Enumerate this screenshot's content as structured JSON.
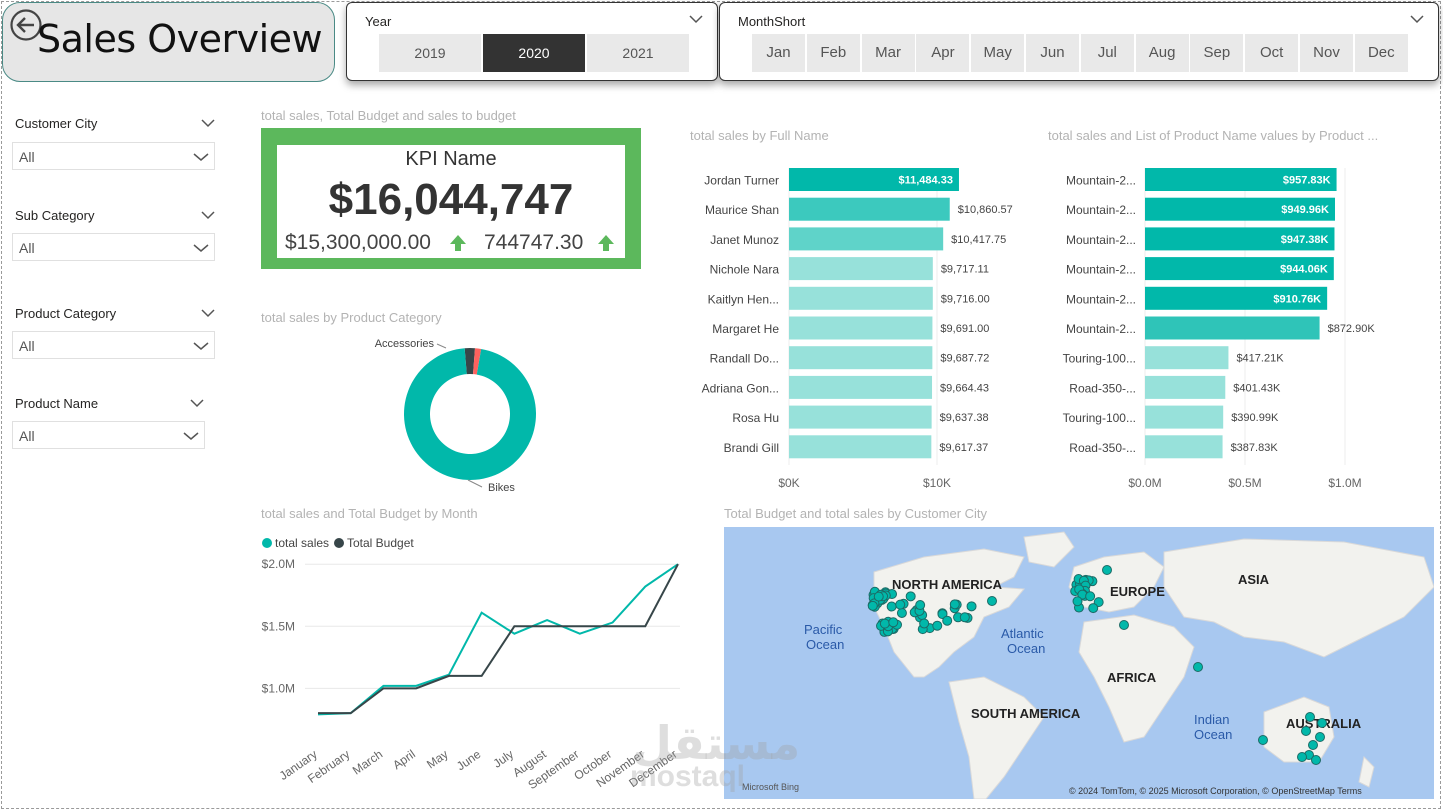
{
  "header": {
    "title": "Sales Overview"
  },
  "year_slicer": {
    "title": "Year",
    "options": [
      "2019",
      "2020",
      "2021"
    ],
    "selected": "2020"
  },
  "month_slicer": {
    "title": "MonthShort",
    "options": [
      "Jan",
      "Feb",
      "Mar",
      "Apr",
      "May",
      "Jun",
      "Jul",
      "Aug",
      "Sep",
      "Oct",
      "Nov",
      "Dec"
    ]
  },
  "filters": [
    {
      "label": "Customer City",
      "value": "All"
    },
    {
      "label": "Sub Category",
      "value": "All"
    },
    {
      "label": "Product Category",
      "value": "All"
    },
    {
      "label": "Product Name",
      "value": "All"
    }
  ],
  "kpi": {
    "section_title": "total sales, Total Budget and sales to budget",
    "name": "KPI Name",
    "value": "$16,044,747",
    "goal": "$15,300,000.00",
    "variance": "744747.30",
    "status_color": "#5cb85c"
  },
  "chart_data": [
    {
      "type": "bar",
      "orientation": "horizontal",
      "title": "total sales by Full Name",
      "categories": [
        "Jordan Turner",
        "Maurice Shan",
        "Janet Munoz",
        "Nichole Nara",
        "Kaitlyn Hen...",
        "Margaret He",
        "Randall Do...",
        "Adriana Gon...",
        "Rosa Hu",
        "Brandi Gill"
      ],
      "values": [
        11484.33,
        10860.57,
        10417.75,
        9717.11,
        9716.0,
        9691.0,
        9687.72,
        9664.43,
        9637.38,
        9617.37
      ],
      "value_labels": [
        "$11,484.33",
        "$10,860.57",
        "$10,417.75",
        "$9,717.11",
        "$9,716.00",
        "$9,691.00",
        "$9,687.72",
        "$9,664.43",
        "$9,637.38",
        "$9,617.37"
      ],
      "x_ticks": [
        "$0K",
        "$10K"
      ],
      "xlim": [
        0,
        15000
      ],
      "colors": [
        "#01b8aa",
        "#5fd3c9",
        "#97e1da"
      ]
    },
    {
      "type": "bar",
      "orientation": "horizontal",
      "title": "total sales and List of Product Name values by Product ...",
      "categories": [
        "Mountain-2...",
        "Mountain-2...",
        "Mountain-2...",
        "Mountain-2...",
        "Mountain-2...",
        "Mountain-2...",
        "Touring-100...",
        "Road-350-...",
        "Touring-100...",
        "Road-350-..."
      ],
      "values": [
        957.83,
        949.96,
        947.38,
        944.06,
        910.76,
        872.9,
        417.21,
        401.43,
        390.99,
        387.83
      ],
      "value_labels": [
        "$957.83K",
        "$949.96K",
        "$947.38K",
        "$944.06K",
        "$910.76K",
        "$872.90K",
        "$417.21K",
        "$401.43K",
        "$390.99K",
        "$387.83K"
      ],
      "x_ticks": [
        "$0.0M",
        "$0.5M",
        "$1.0M"
      ],
      "xlim": [
        0,
        1000
      ],
      "colors": [
        "#01b8aa",
        "#5fd3c9",
        "#97e1da"
      ]
    },
    {
      "type": "pie",
      "donut": true,
      "title": "total sales by Product Category",
      "slices": [
        {
          "label": "Bikes",
          "value": 96.0,
          "color": "#01b8aa"
        },
        {
          "label": "Accessories",
          "value": 2.5,
          "color": "#374649"
        },
        {
          "label": "",
          "value": 1.5,
          "color": "#fd625e"
        }
      ]
    },
    {
      "type": "line",
      "title": "total sales and Total Budget by Month",
      "categories": [
        "January",
        "February",
        "March",
        "April",
        "May",
        "June",
        "July",
        "August",
        "September",
        "October",
        "November",
        "December"
      ],
      "series": [
        {
          "name": "total sales",
          "color": "#01b8aa",
          "values": [
            0.79,
            0.8,
            1.02,
            1.02,
            1.11,
            1.61,
            1.44,
            1.55,
            1.44,
            1.53,
            1.82,
            2.0
          ]
        },
        {
          "name": "Total Budget",
          "color": "#374649",
          "values": [
            0.8,
            0.8,
            1.0,
            1.0,
            1.1,
            1.1,
            1.5,
            1.5,
            1.5,
            1.5,
            1.5,
            2.0
          ]
        }
      ],
      "y_ticks": [
        "$1.0M",
        "$1.5M",
        "$2.0M"
      ],
      "ylim": [
        0.6,
        2.05
      ]
    }
  ],
  "map": {
    "title": "Total Budget and total sales by Customer City",
    "labels": [
      "NORTH AMERICA",
      "EUROPE",
      "ASIA",
      "Pacific",
      "Ocean",
      "Atlantic",
      "Ocean",
      "AFRICA",
      "SOUTH AMERICA",
      "Indian",
      "Ocean",
      "AUSTRALIA"
    ],
    "attribution": "© 2024 TomTom, © 2025 Microsoft Corporation, © OpenStreetMap  Terms",
    "provider": "Microsoft Bing",
    "water_color": "#a8c8f0",
    "land_color": "#f2f2ee",
    "point_color": "#01b8aa"
  },
  "watermark": {
    "text1": "مستقل",
    "text2": "mostaql"
  }
}
